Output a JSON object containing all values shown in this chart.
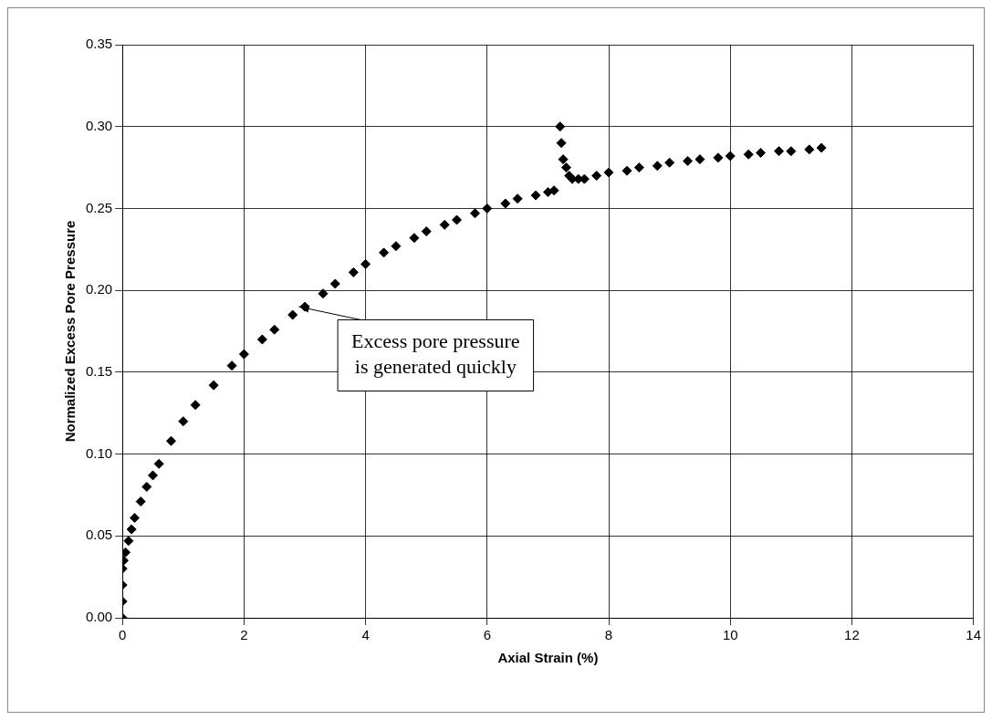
{
  "chart_data": {
    "type": "scatter",
    "xlabel": "Axial Strain (%)",
    "ylabel": "Normalized Excess Pore Pressure",
    "x": [
      0,
      0,
      0,
      0,
      0.02,
      0.05,
      0.1,
      0.15,
      0.2,
      0.3,
      0.4,
      0.5,
      0.6,
      0.8,
      1,
      1.2,
      1.5,
      1.8,
      2,
      2.3,
      2.5,
      2.8,
      3,
      3.3,
      3.5,
      3.8,
      4,
      4.3,
      4.5,
      4.8,
      5,
      5.3,
      5.5,
      5.8,
      6,
      6.3,
      6.5,
      6.8,
      7,
      7.1,
      7.2,
      7.22,
      7.25,
      7.3,
      7.35,
      7.4,
      7.5,
      7.6,
      7.8,
      8,
      8.3,
      8.5,
      8.8,
      9,
      9.3,
      9.5,
      9.8,
      10,
      10.3,
      10.5,
      10.8,
      11,
      11.3,
      11.5
    ],
    "series": [
      {
        "color": "#000000",
        "values": [
          0,
          0.01,
          0.02,
          0.03,
          0.035,
          0.04,
          0.047,
          0.054,
          0.061,
          0.071,
          0.08,
          0.087,
          0.094,
          0.108,
          0.12,
          0.13,
          0.142,
          0.154,
          0.161,
          0.17,
          0.176,
          0.185,
          0.19,
          0.198,
          0.204,
          0.211,
          0.216,
          0.223,
          0.227,
          0.232,
          0.236,
          0.24,
          0.243,
          0.247,
          0.25,
          0.253,
          0.256,
          0.258,
          0.26,
          0.261,
          0.3,
          0.29,
          0.28,
          0.275,
          0.27,
          0.268,
          0.268,
          0.268,
          0.27,
          0.272,
          0.273,
          0.275,
          0.276,
          0.278,
          0.279,
          0.28,
          0.281,
          0.282,
          0.283,
          0.284,
          0.285,
          0.285,
          0.286,
          0.287
        ]
      }
    ],
    "xlim": [
      0,
      14
    ],
    "xticks": [
      0,
      2,
      4,
      6,
      8,
      10,
      12,
      14
    ],
    "ylim": [
      0,
      0.35
    ],
    "yticks": [
      {
        "value": 0,
        "label": "0.00"
      },
      {
        "value": 0.05,
        "label": "0.05"
      },
      {
        "value": 0.1,
        "label": "0.10"
      },
      {
        "value": 0.15,
        "label": "0.15"
      },
      {
        "value": 0.2,
        "label": "0.20"
      },
      {
        "value": 0.25,
        "label": "0.25"
      },
      {
        "value": 0.3,
        "label": "0.30"
      },
      {
        "value": 0.35,
        "label": "0.35"
      }
    ],
    "grid": true,
    "legend": false,
    "marker": "diamond",
    "annotations": [
      {
        "text": "Excess pore pressure\nis generated quickly",
        "x": 2.9,
        "y": 0.19
      }
    ]
  }
}
